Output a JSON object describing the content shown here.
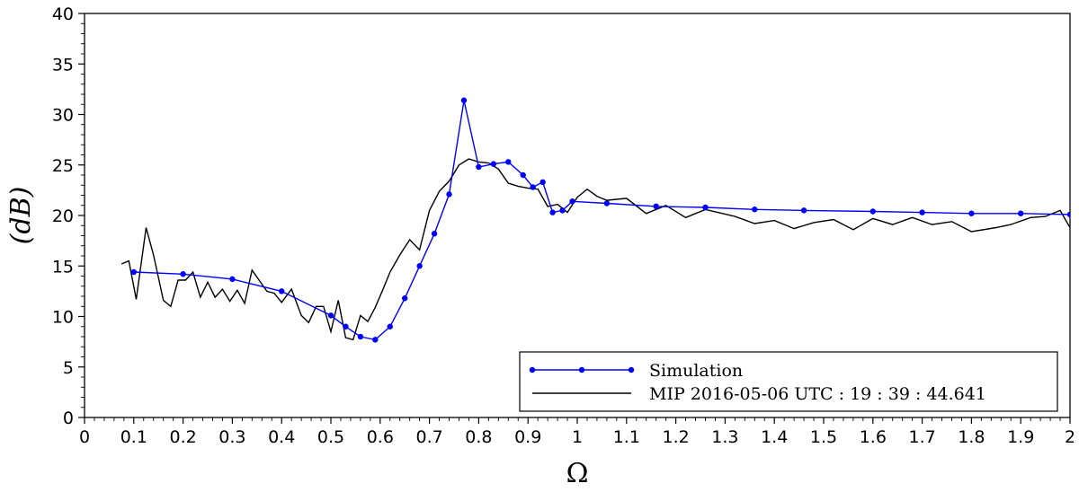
{
  "chart_data": {
    "type": "line",
    "xlabel": "Ω",
    "ylabel": "(dB)",
    "xlim": [
      0,
      2
    ],
    "ylim": [
      0,
      40
    ],
    "xticks": [
      "0",
      "0.1",
      "0.2",
      "0.3",
      "0.4",
      "0.5",
      "0.6",
      "0.7",
      "0.8",
      "0.9",
      "1",
      "1.1",
      "1.2",
      "1.3",
      "1.4",
      "1.5",
      "1.6",
      "1.7",
      "1.8",
      "1.9",
      "2"
    ],
    "yticks": [
      "0",
      "5",
      "10",
      "15",
      "20",
      "25",
      "30",
      "35",
      "40"
    ],
    "grid": false,
    "legend_position": "bottom-right",
    "series": [
      {
        "name": "Simulation",
        "color": "#0000ff",
        "marker": "circle",
        "x": [
          0.1,
          0.2,
          0.3,
          0.4,
          0.5,
          0.53,
          0.56,
          0.59,
          0.62,
          0.65,
          0.68,
          0.71,
          0.74,
          0.77,
          0.8,
          0.83,
          0.86,
          0.89,
          0.91,
          0.93,
          0.95,
          0.97,
          0.99,
          1.06,
          1.16,
          1.26,
          1.36,
          1.46,
          1.6,
          1.7,
          1.8,
          1.9,
          2.0
        ],
        "y": [
          14.4,
          14.2,
          13.7,
          12.5,
          10.1,
          9.0,
          8.0,
          7.7,
          9.0,
          11.8,
          15.0,
          18.2,
          22.1,
          31.4,
          24.8,
          25.1,
          25.3,
          24.0,
          22.8,
          23.3,
          20.3,
          20.5,
          21.4,
          21.2,
          20.9,
          20.8,
          20.6,
          20.5,
          20.4,
          20.3,
          20.2,
          20.2,
          20.1
        ]
      },
      {
        "name": "MIP 2016-05-06 UTC : 19 : 39 : 44.641",
        "color": "#000000",
        "marker": "none",
        "x": [
          0.075,
          0.09,
          0.105,
          0.125,
          0.14,
          0.16,
          0.175,
          0.19,
          0.205,
          0.22,
          0.235,
          0.25,
          0.265,
          0.28,
          0.295,
          0.31,
          0.325,
          0.34,
          0.37,
          0.385,
          0.4,
          0.42,
          0.44,
          0.455,
          0.47,
          0.485,
          0.5,
          0.515,
          0.53,
          0.545,
          0.56,
          0.575,
          0.59,
          0.605,
          0.62,
          0.64,
          0.66,
          0.68,
          0.7,
          0.72,
          0.74,
          0.76,
          0.78,
          0.8,
          0.82,
          0.84,
          0.86,
          0.88,
          0.9,
          0.92,
          0.94,
          0.96,
          0.98,
          1.0,
          1.02,
          1.04,
          1.06,
          1.1,
          1.14,
          1.18,
          1.22,
          1.26,
          1.32,
          1.36,
          1.4,
          1.44,
          1.48,
          1.52,
          1.56,
          1.6,
          1.64,
          1.68,
          1.72,
          1.76,
          1.8,
          1.85,
          1.88,
          1.92,
          1.95,
          1.98,
          2.0
        ],
        "y": [
          15.2,
          15.5,
          11.7,
          18.8,
          16.1,
          11.6,
          11.0,
          13.6,
          13.6,
          14.4,
          11.9,
          13.4,
          11.9,
          12.7,
          11.5,
          12.6,
          11.3,
          14.6,
          12.5,
          12.3,
          11.4,
          12.7,
          10.1,
          9.4,
          11.0,
          11.0,
          8.5,
          11.6,
          7.9,
          7.7,
          10.1,
          9.5,
          10.9,
          12.6,
          14.4,
          16.1,
          17.6,
          16.6,
          20.5,
          22.4,
          23.4,
          25.0,
          25.6,
          25.3,
          25.2,
          24.6,
          23.2,
          22.9,
          22.7,
          22.6,
          20.9,
          21.1,
          20.3,
          21.8,
          22.6,
          21.9,
          21.5,
          21.7,
          20.2,
          21.0,
          19.8,
          20.6,
          19.9,
          19.2,
          19.5,
          18.7,
          19.3,
          19.6,
          18.6,
          19.7,
          19.1,
          19.8,
          19.1,
          19.4,
          18.4,
          18.8,
          19.1,
          19.8,
          19.9,
          20.5,
          18.8
        ]
      }
    ]
  }
}
